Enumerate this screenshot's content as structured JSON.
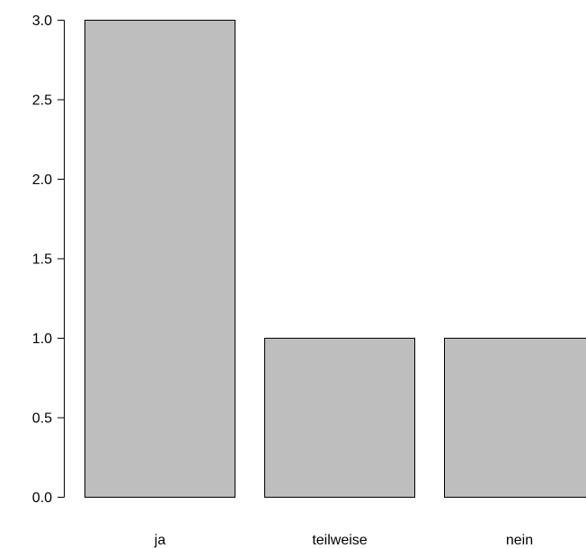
{
  "chart_data": {
    "type": "bar",
    "categories": [
      "ja",
      "teilweise",
      "nein"
    ],
    "values": [
      3,
      1,
      1
    ],
    "title": "",
    "xlabel": "",
    "ylabel": "",
    "ylim": [
      0,
      3
    ],
    "y_ticks": [
      "0.0",
      "0.5",
      "1.0",
      "1.5",
      "2.0",
      "2.5",
      "3.0"
    ],
    "y_tick_values": [
      0,
      0.5,
      1,
      1.5,
      2,
      2.5,
      3
    ],
    "bar_color": "#bebebe",
    "bar_border_color": "#000000",
    "grid": false,
    "legend": "none"
  }
}
